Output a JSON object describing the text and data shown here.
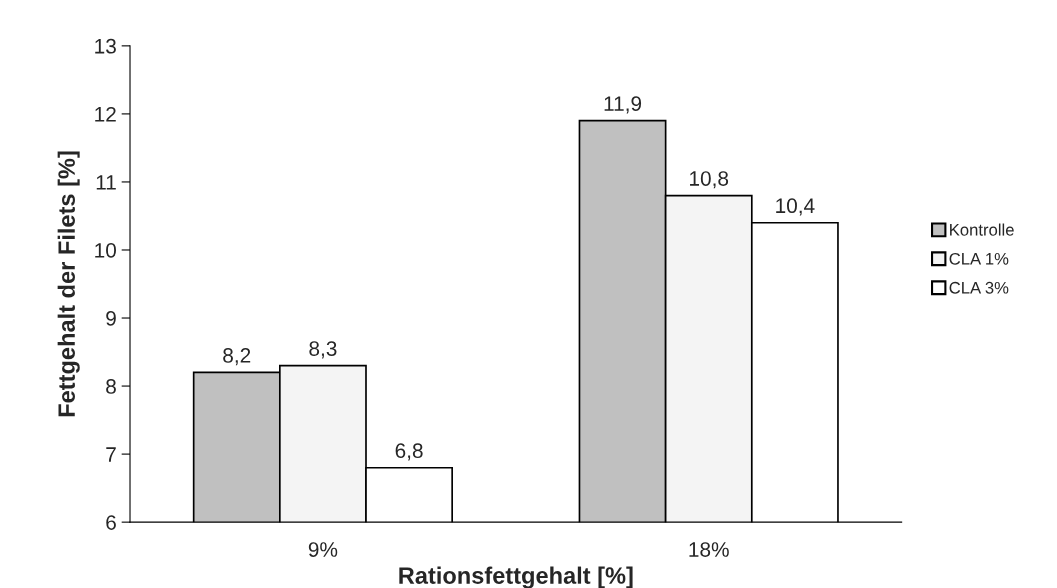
{
  "chart_data": {
    "type": "bar",
    "xlabel": "Rationsfettgehalt [%]",
    "ylabel": "Fettgehalt der Filets [%]",
    "categories": [
      "9%",
      "18%"
    ],
    "series": [
      {
        "name": "Kontrolle",
        "color": "#c0c0c0",
        "values": [
          8.2,
          11.9
        ],
        "value_labels": [
          "8,2",
          "11,9"
        ]
      },
      {
        "name": "CLA 1%",
        "color": "#f4f4f4",
        "values": [
          8.3,
          10.8
        ],
        "value_labels": [
          "8,3",
          "10,8"
        ]
      },
      {
        "name": "CLA 3%",
        "color": "#ffffff",
        "values": [
          6.8,
          10.4
        ],
        "value_labels": [
          "6,8",
          "10,4"
        ]
      }
    ],
    "ylim": [
      6,
      13
    ],
    "yticks": [
      6,
      7,
      8,
      9,
      10,
      11,
      12,
      13
    ],
    "grid": false,
    "legend": "right"
  }
}
